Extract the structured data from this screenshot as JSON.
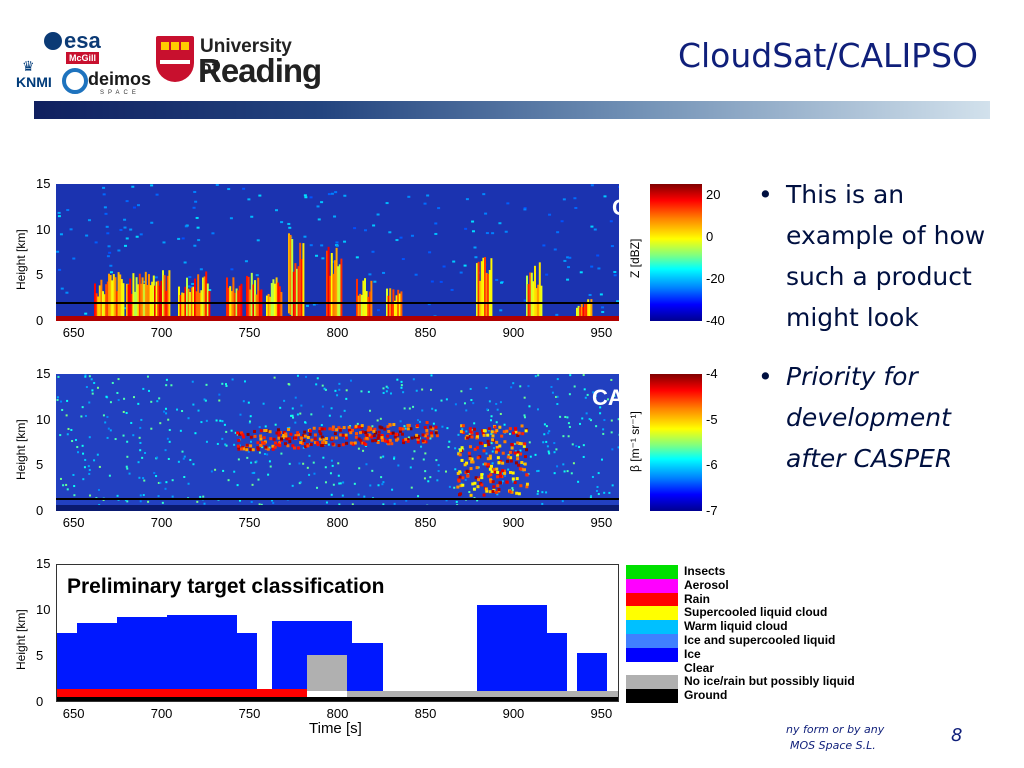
{
  "slide": {
    "title": "CloudSat/CALIPSO",
    "page_number": "8",
    "footer_line1": "ny form or by any",
    "footer_line2": "MOS Space S.L."
  },
  "logos": {
    "esa": "esa",
    "mcgill": "McGill",
    "knmi": "KNMI",
    "deimos": "deimos",
    "deimos_sub": "SPACE",
    "reading_line1": "University of",
    "reading_line2": "Reading"
  },
  "bullets": [
    {
      "text": "This is an example of how such a product might look",
      "italic": false
    },
    {
      "text": "Priority for development after CASPER",
      "italic": true
    }
  ],
  "chart_data": [
    {
      "type": "heatmap",
      "overlay_label": "Cloudsat",
      "ylabel": "Height [km]",
      "yticks": [
        "15",
        "10",
        "5",
        "0"
      ],
      "xticks": [
        "650",
        "700",
        "750",
        "800",
        "850",
        "900",
        "950"
      ],
      "xlim": [
        640,
        960
      ],
      "ylim": [
        0,
        15
      ],
      "colorbar": {
        "label": "Z [dBZ]",
        "ticks": [
          "20",
          "0",
          "-20",
          "-40"
        ],
        "range": [
          -40,
          25
        ],
        "colormap": "jet"
      }
    },
    {
      "type": "heatmap",
      "overlay_label": "CALIPSO",
      "ylabel": "Height [km]",
      "yticks": [
        "15",
        "10",
        "5",
        "0"
      ],
      "xticks": [
        "650",
        "700",
        "750",
        "800",
        "850",
        "900",
        "950"
      ],
      "xlim": [
        640,
        960
      ],
      "ylim": [
        0,
        15
      ],
      "colorbar": {
        "label": "β [m⁻¹ sr⁻¹]",
        "ticks": [
          "-4",
          "-5",
          "-6",
          "-7"
        ],
        "range": [
          -7,
          -4
        ],
        "colormap": "jet"
      }
    },
    {
      "type": "heatmap",
      "title": "Preliminary target classification",
      "ylabel": "Height [km]",
      "xlabel": "Time [s]",
      "yticks": [
        "15",
        "10",
        "5",
        "0"
      ],
      "xticks": [
        "650",
        "700",
        "750",
        "800",
        "850",
        "900",
        "950"
      ],
      "xlim": [
        640,
        960
      ],
      "ylim": [
        0,
        15
      ],
      "legend": [
        {
          "label": "Insects",
          "color": "#00e000"
        },
        {
          "label": "Aerosol",
          "color": "#ff00ff"
        },
        {
          "label": "Rain",
          "color": "#ff0000"
        },
        {
          "label": "Supercooled liquid cloud",
          "color": "#ffff00"
        },
        {
          "label": "Warm liquid cloud",
          "color": "#00c0ff"
        },
        {
          "label": "Ice and supercooled liquid",
          "color": "#4080ff"
        },
        {
          "label": "Ice",
          "color": "#0000ff"
        },
        {
          "label": "Clear",
          "color": "#ffffff"
        },
        {
          "label": "No ice/rain but possibly liquid",
          "color": "#b0b0b0"
        },
        {
          "label": "Ground",
          "color": "#000000"
        }
      ]
    }
  ]
}
